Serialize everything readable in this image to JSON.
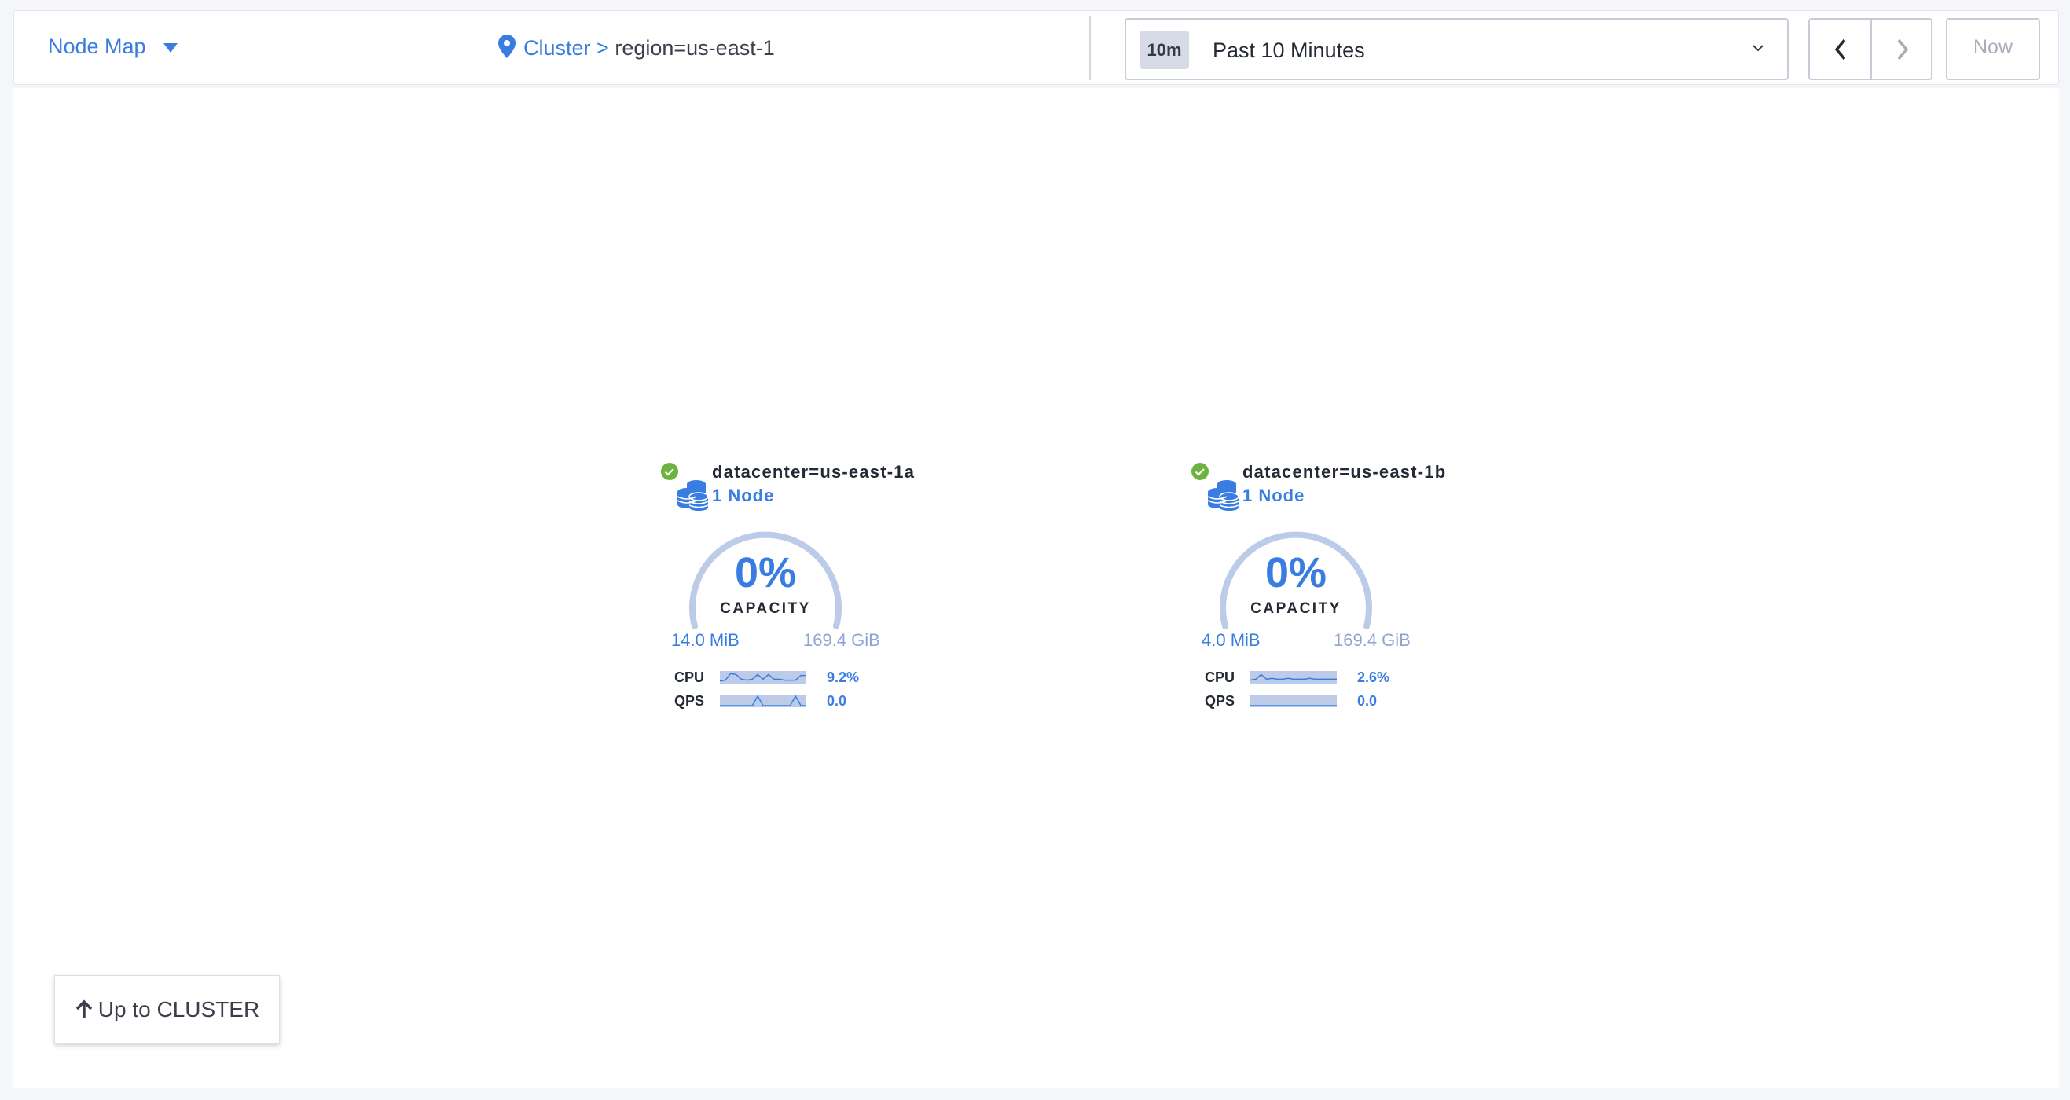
{
  "header": {
    "view_selector": "Node Map",
    "breadcrumb": {
      "root": "Cluster",
      "separator": ">",
      "current": "region=us-east-1"
    },
    "time_range": {
      "badge": "10m",
      "label": "Past 10 Minutes"
    },
    "now_label": "Now"
  },
  "colors": {
    "accent": "#3a7de1",
    "healthy": "#6db33f",
    "gauge_track": "#bccbe8"
  },
  "nodes": [
    {
      "title": "datacenter=us-east-1a",
      "count": "1 Node",
      "status": "healthy",
      "capacity_pct": "0%",
      "capacity_label": "CAPACITY",
      "used": "14.0 MiB",
      "total": "169.4 GiB",
      "cpu_label": "CPU",
      "cpu_value": "9.2%",
      "cpu_spark": [
        0.1,
        0.2,
        0.9,
        0.8,
        0.3,
        0.2,
        0.3,
        0.8,
        0.3,
        0.8,
        0.3,
        0.3,
        0.2,
        0.2,
        0.2,
        0.7,
        0.7
      ],
      "qps_label": "QPS",
      "qps_value": "0.0",
      "qps_spark": [
        0,
        0,
        0,
        0,
        0,
        0,
        0,
        1,
        0,
        0,
        0,
        0,
        0,
        0,
        1,
        0,
        0
      ]
    },
    {
      "title": "datacenter=us-east-1b",
      "count": "1 Node",
      "status": "healthy",
      "capacity_pct": "0%",
      "capacity_label": "CAPACITY",
      "used": "4.0 MiB",
      "total": "169.4 GiB",
      "cpu_label": "CPU",
      "cpu_value": "2.6%",
      "cpu_spark": [
        0.2,
        0.3,
        0.8,
        0.3,
        0.4,
        0.3,
        0.3,
        0.4,
        0.3,
        0.3,
        0.3,
        0.4,
        0.3,
        0.3,
        0.3,
        0.3,
        0.3
      ],
      "qps_label": "QPS",
      "qps_value": "0.0",
      "qps_spark": [
        0,
        0,
        0,
        0,
        0,
        0,
        0,
        0,
        0,
        0,
        0,
        0,
        0,
        0,
        0,
        0,
        0
      ]
    }
  ],
  "up_button": "Up to CLUSTER"
}
